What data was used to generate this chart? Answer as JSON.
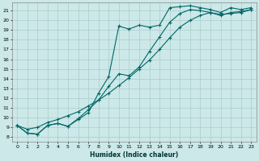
{
  "xlabel": "Humidex (Indice chaleur)",
  "bg_color": "#cce8e8",
  "grid_color": "#aacccc",
  "line_color": "#006666",
  "xlim": [
    -0.5,
    23.5
  ],
  "ylim": [
    7.5,
    21.8
  ],
  "xticks": [
    0,
    1,
    2,
    3,
    4,
    5,
    6,
    7,
    8,
    9,
    10,
    11,
    12,
    13,
    14,
    15,
    16,
    17,
    18,
    19,
    20,
    21,
    22,
    23
  ],
  "yticks": [
    8,
    9,
    10,
    11,
    12,
    13,
    14,
    15,
    16,
    17,
    18,
    19,
    20,
    21
  ],
  "line1_x": [
    0,
    1,
    2,
    3,
    4,
    5,
    6,
    7,
    8,
    9,
    10,
    11,
    12,
    13,
    14,
    15,
    16,
    17,
    18,
    19,
    20,
    21,
    22,
    23
  ],
  "line1_y": [
    9.2,
    8.4,
    8.3,
    9.2,
    9.4,
    9.1,
    9.8,
    10.5,
    12.5,
    14.2,
    19.4,
    19.1,
    19.5,
    19.3,
    19.5,
    21.3,
    21.4,
    21.5,
    21.3,
    21.1,
    20.8,
    21.3,
    21.1,
    21.3
  ],
  "line2_x": [
    0,
    1,
    2,
    3,
    4,
    5,
    6,
    7,
    8,
    9,
    10,
    11,
    12,
    13,
    14,
    15,
    16,
    17,
    18,
    19,
    20,
    21,
    22,
    23
  ],
  "line2_y": [
    9.2,
    8.4,
    8.3,
    9.2,
    9.4,
    9.1,
    9.9,
    10.8,
    11.8,
    13.2,
    14.5,
    14.3,
    15.2,
    16.8,
    18.3,
    19.8,
    20.7,
    21.1,
    21.0,
    20.8,
    20.5,
    20.8,
    20.9,
    21.1
  ],
  "line3_x": [
    0,
    1,
    2,
    3,
    4,
    5,
    6,
    7,
    8,
    9,
    10,
    11,
    12,
    13,
    14,
    15,
    16,
    17,
    18,
    19,
    20,
    21,
    22,
    23
  ],
  "line3_y": [
    9.2,
    8.8,
    9.0,
    9.5,
    9.8,
    10.2,
    10.6,
    11.2,
    11.8,
    12.5,
    13.3,
    14.1,
    15.0,
    15.9,
    17.0,
    18.2,
    19.3,
    20.0,
    20.5,
    20.8,
    20.6,
    20.7,
    20.8,
    21.1
  ]
}
